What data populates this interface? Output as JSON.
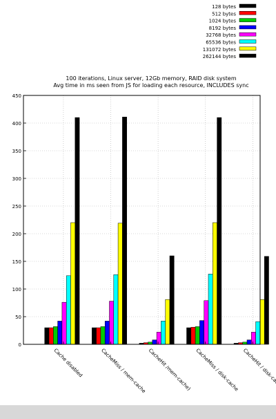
{
  "chart_data": {
    "type": "bar",
    "title": "100 iterations, Linux server, 12Gb memory, RAID disk system",
    "subtitle": "Avg time in ms seen from JS for loading each resource, INCLUDES sync",
    "xlabel": "",
    "ylabel": "",
    "ylim": [
      0,
      450
    ],
    "yticks": [
      0,
      50,
      100,
      150,
      200,
      250,
      300,
      350,
      400,
      450
    ],
    "grid": true,
    "legend_position": "top-right",
    "categories": [
      "Cache disabled",
      "CacheMiss / mem-cache",
      "CacheHit /mem-cache)",
      "CacheMiss / disk-cache",
      "CacheHit  / disk-cache"
    ],
    "series": [
      {
        "name": "128 bytes",
        "color": "#000000",
        "values": [
          30,
          30,
          2,
          30,
          2
        ]
      },
      {
        "name": "512 bytes",
        "color": "#ff0000",
        "values": [
          30,
          30,
          3,
          31,
          3
        ]
      },
      {
        "name": "1024 bytes",
        "color": "#00cc00",
        "values": [
          32,
          32,
          4,
          32,
          4
        ]
      },
      {
        "name": "8192 bytes",
        "color": "#0000ff",
        "values": [
          42,
          42,
          8,
          43,
          8
        ]
      },
      {
        "name": "32768 bytes",
        "color": "#ff00ff",
        "values": [
          76,
          78,
          22,
          79,
          22
        ]
      },
      {
        "name": "65536 bytes",
        "color": "#00ffff",
        "values": [
          124,
          126,
          42,
          127,
          41
        ]
      },
      {
        "name": "131072 bytes",
        "color": "#ffff00",
        "values": [
          220,
          219,
          81,
          220,
          81
        ]
      },
      {
        "name": "262144 bytes",
        "color": "#000000",
        "values": [
          410,
          411,
          160,
          410,
          159
        ]
      }
    ]
  }
}
